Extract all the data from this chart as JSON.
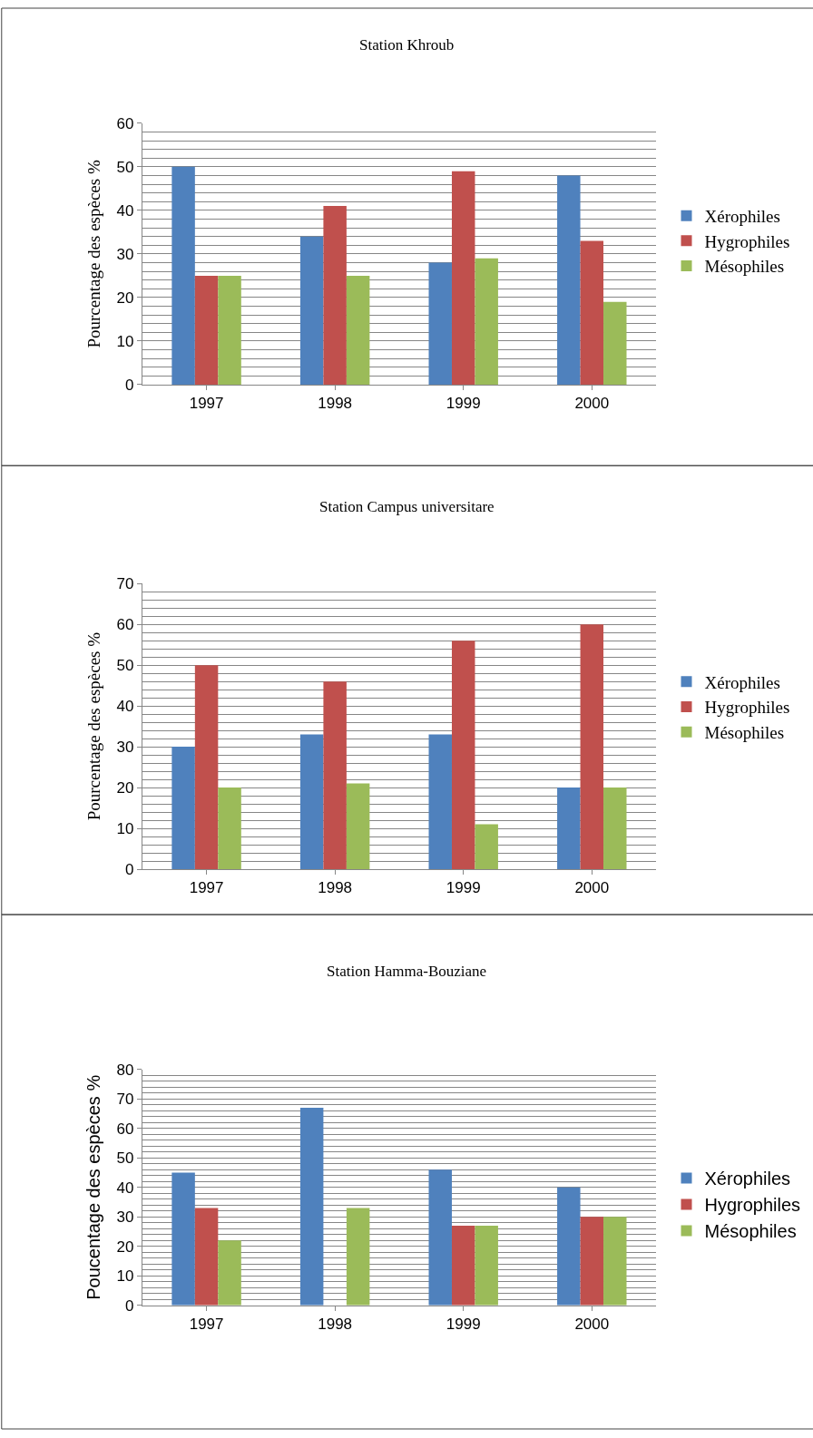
{
  "chart_data": [
    {
      "type": "bar",
      "title": "Station Khroub",
      "ylabel": "Pourcentage des espèces %",
      "categories": [
        "1997",
        "1998",
        "1999",
        "2000"
      ],
      "series": [
        {
          "name": "Xérophiles",
          "color": "#4f81bd",
          "values": [
            50,
            34,
            28,
            48
          ]
        },
        {
          "name": "Hygrophiles",
          "color": "#c0504d",
          "values": [
            25,
            41,
            49,
            33
          ]
        },
        {
          "name": "Mésophiles",
          "color": "#9bbb59",
          "values": [
            25,
            25,
            29,
            19
          ]
        }
      ],
      "ylim": [
        0,
        60
      ],
      "yticks": [
        0,
        10,
        20,
        30,
        40,
        50,
        60
      ],
      "grid": "y",
      "legend": "right"
    },
    {
      "type": "bar",
      "title": "Station Campus universitare",
      "ylabel": "Pourcentage des espèces %",
      "categories": [
        "1997",
        "1998",
        "1999",
        "2000"
      ],
      "series": [
        {
          "name": "Xérophiles",
          "color": "#4f81bd",
          "values": [
            30,
            33,
            33,
            20
          ]
        },
        {
          "name": "Hygrophiles",
          "color": "#c0504d",
          "values": [
            50,
            46,
            56,
            60
          ]
        },
        {
          "name": "Mésophiles",
          "color": "#9bbb59",
          "values": [
            20,
            21,
            11,
            20
          ]
        }
      ],
      "ylim": [
        0,
        70
      ],
      "yticks": [
        0,
        10,
        20,
        30,
        40,
        50,
        60,
        70
      ],
      "grid": "y",
      "legend": "right"
    },
    {
      "type": "bar",
      "title": "Station Hamma-Bouziane",
      "ylabel": "Poucentage des espèces %",
      "categories": [
        "1997",
        "1998",
        "1999",
        "2000"
      ],
      "series": [
        {
          "name": "Xérophiles",
          "color": "#4f81bd",
          "values": [
            45,
            67,
            46,
            40
          ]
        },
        {
          "name": "Hygrophiles",
          "color": "#c0504d",
          "values": [
            33,
            0,
            27,
            30
          ]
        },
        {
          "name": "Mésophiles",
          "color": "#9bbb59",
          "values": [
            22,
            33,
            27,
            30
          ]
        }
      ],
      "ylim": [
        0,
        80
      ],
      "yticks": [
        0,
        10,
        20,
        30,
        40,
        50,
        60,
        70,
        80
      ],
      "grid": "y",
      "legend": "right"
    }
  ]
}
